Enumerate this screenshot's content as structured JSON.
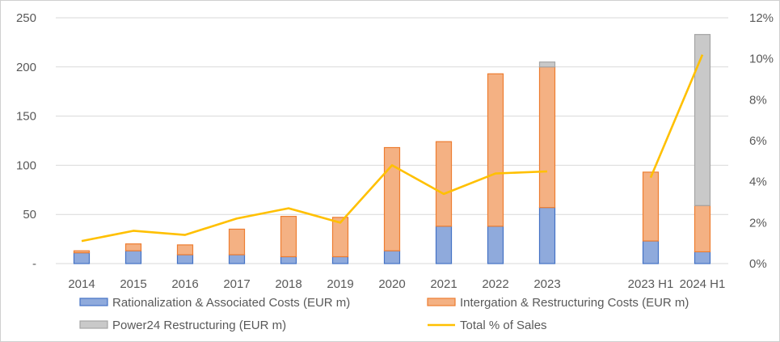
{
  "chart_data": {
    "type": "bar",
    "stacked": true,
    "categories": [
      "2014",
      "2015",
      "2016",
      "2017",
      "2018",
      "2019",
      "2020",
      "2021",
      "2022",
      "2023",
      "",
      "2023 H1",
      "2024 H1"
    ],
    "series": [
      {
        "name": "Rationalization & Associated Costs (EUR m)",
        "kind": "bar",
        "axis": "left",
        "color": "#8faadc",
        "stroke": "#4472c4",
        "values": [
          11,
          13,
          9,
          9,
          7,
          7,
          13,
          38,
          38,
          57,
          null,
          23,
          12
        ]
      },
      {
        "name": "Intergation & Restructuring Costs (EUR m)",
        "kind": "bar",
        "axis": "left",
        "color": "#f4b183",
        "stroke": "#ed7d31",
        "values": [
          2,
          7,
          10,
          26,
          41,
          40,
          105,
          86,
          155,
          143,
          null,
          70,
          47
        ]
      },
      {
        "name": "Power24 Restructuring (EUR m)",
        "kind": "bar",
        "axis": "left",
        "color": "#c9c9c9",
        "stroke": "#a5a5a5",
        "values": [
          0,
          0,
          0,
          0,
          0,
          0,
          0,
          0,
          0,
          5,
          null,
          0,
          174
        ]
      },
      {
        "name": "Total % of Sales",
        "kind": "line",
        "axis": "right",
        "color": "#ffc000",
        "values": [
          1.1,
          1.6,
          1.4,
          2.2,
          2.7,
          2.0,
          4.8,
          3.4,
          4.4,
          4.5,
          null,
          4.2,
          10.2
        ]
      }
    ],
    "y_left": {
      "min": 0,
      "max": 250,
      "ticks": [
        0,
        50,
        100,
        150,
        200,
        250
      ],
      "tick_labels": [
        "-",
        "50",
        "100",
        "150",
        "200",
        "250"
      ]
    },
    "y_right": {
      "min": 0,
      "max": 12,
      "ticks": [
        0,
        2,
        4,
        6,
        8,
        10,
        12
      ],
      "tick_labels": [
        "0%",
        "2%",
        "4%",
        "6%",
        "8%",
        "10%",
        "12%"
      ]
    },
    "grid": true,
    "legend": "bottom",
    "title": "",
    "xlabel": "",
    "ylabel": ""
  }
}
